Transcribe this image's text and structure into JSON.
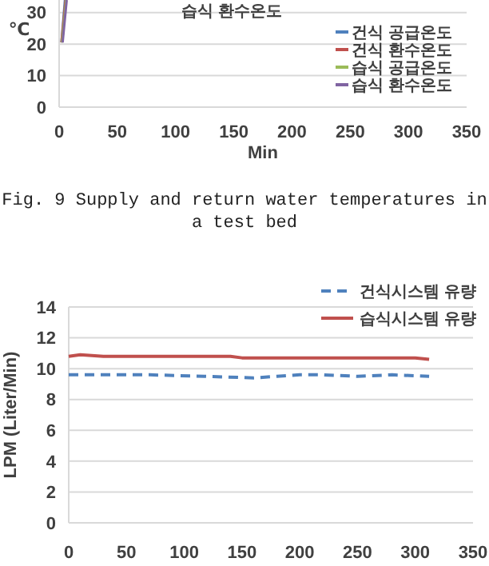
{
  "chart_data": [
    {
      "type": "line",
      "xlabel": "Min",
      "ylabel": "℃",
      "xlim": [
        0,
        350
      ],
      "xticks": [
        0,
        50,
        100,
        150,
        200,
        250,
        300,
        350
      ],
      "ylim": [
        0,
        34
      ],
      "yticks": [
        0,
        10,
        20,
        30
      ],
      "grid": "y",
      "legend": "right",
      "annotations": [
        "습식 환수온도",
        "Fig. 9 Supply and return water temperatures in a test bed"
      ],
      "series": [
        {
          "name": "건식 공급온도",
          "color": "#4f81bd",
          "x": [
            2,
            5
          ],
          "values": [
            20.5,
            34
          ]
        },
        {
          "name": "건식 환수온도",
          "color": "#c0504d",
          "x": [
            2,
            5.5
          ],
          "values": [
            20.5,
            34
          ]
        },
        {
          "name": "습식 공급온도",
          "color": "#9bbb59",
          "x": [
            2.5,
            6
          ],
          "values": [
            20.5,
            34
          ]
        },
        {
          "name": "습식 환수온도",
          "color": "#8064a2",
          "x": [
            3,
            6.5
          ],
          "values": [
            20.5,
            34
          ]
        }
      ]
    },
    {
      "type": "line",
      "ylabel": "LPM (Liter/Min)",
      "xlim": [
        0,
        350
      ],
      "xticks": [
        0,
        50,
        100,
        150,
        200,
        250,
        300,
        350
      ],
      "ylim": [
        0,
        14
      ],
      "yticks": [
        0,
        2,
        4,
        6,
        8,
        10,
        12,
        14
      ],
      "grid": "y",
      "legend": "top right",
      "series": [
        {
          "name": "건식시스템 유량",
          "color": "#4f81bd",
          "line_style": "dashed",
          "x": [
            0,
            50,
            70,
            120,
            160,
            180,
            200,
            220,
            250,
            280,
            312
          ],
          "values": [
            9.6,
            9.6,
            9.6,
            9.5,
            9.4,
            9.5,
            9.6,
            9.6,
            9.5,
            9.6,
            9.5
          ]
        },
        {
          "name": "습식시스템 유량",
          "color": "#c0504d",
          "line_style": "solid",
          "x": [
            0,
            10,
            30,
            60,
            100,
            140,
            150,
            200,
            250,
            300,
            312
          ],
          "values": [
            10.8,
            10.9,
            10.8,
            10.8,
            10.8,
            10.8,
            10.7,
            10.7,
            10.7,
            10.7,
            10.6
          ]
        }
      ]
    }
  ]
}
